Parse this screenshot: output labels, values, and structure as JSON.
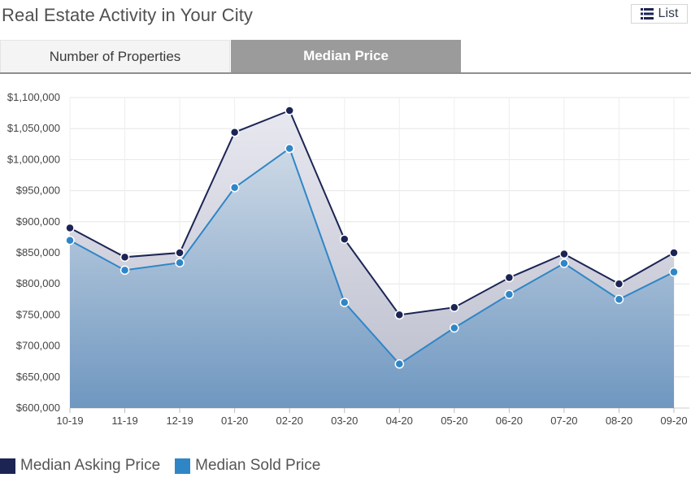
{
  "header": {
    "title": "Real Estate Activity in Your City",
    "list_button": {
      "label": "List",
      "icon": "list-icon"
    }
  },
  "tabs": [
    {
      "label": "Number of Properties",
      "active": false
    },
    {
      "label": "Median Price",
      "active": true
    }
  ],
  "chart_data": {
    "type": "area",
    "categories": [
      "10-19",
      "11-19",
      "12-19",
      "01-20",
      "02-20",
      "03-20",
      "04-20",
      "05-20",
      "06-20",
      "07-20",
      "08-20",
      "09-20"
    ],
    "series": [
      {
        "name": "Median Asking Price",
        "color": "#1c2454",
        "values": [
          890000,
          843000,
          850000,
          1044000,
          1079000,
          872000,
          750000,
          762000,
          810000,
          848000,
          800000,
          850000
        ]
      },
      {
        "name": "Median Sold Price",
        "color": "#2f86c7",
        "values": [
          870000,
          822000,
          834000,
          955000,
          1018000,
          770000,
          671000,
          729000,
          783000,
          833000,
          775000,
          819000
        ]
      }
    ],
    "ylim": [
      600000,
      1100000
    ],
    "yticks": [
      1100000,
      1050000,
      1000000,
      950000,
      900000,
      850000,
      800000,
      750000,
      700000,
      650000,
      600000
    ],
    "ytick_labels": [
      "$1,100,000",
      "$1,050,000",
      "$1,000,000",
      "$950,000",
      "$900,000",
      "$850,000",
      "$800,000",
      "$750,000",
      "$700,000",
      "$650,000",
      "$600,000"
    ],
    "grid": true,
    "legend_position": "bottom-left"
  }
}
